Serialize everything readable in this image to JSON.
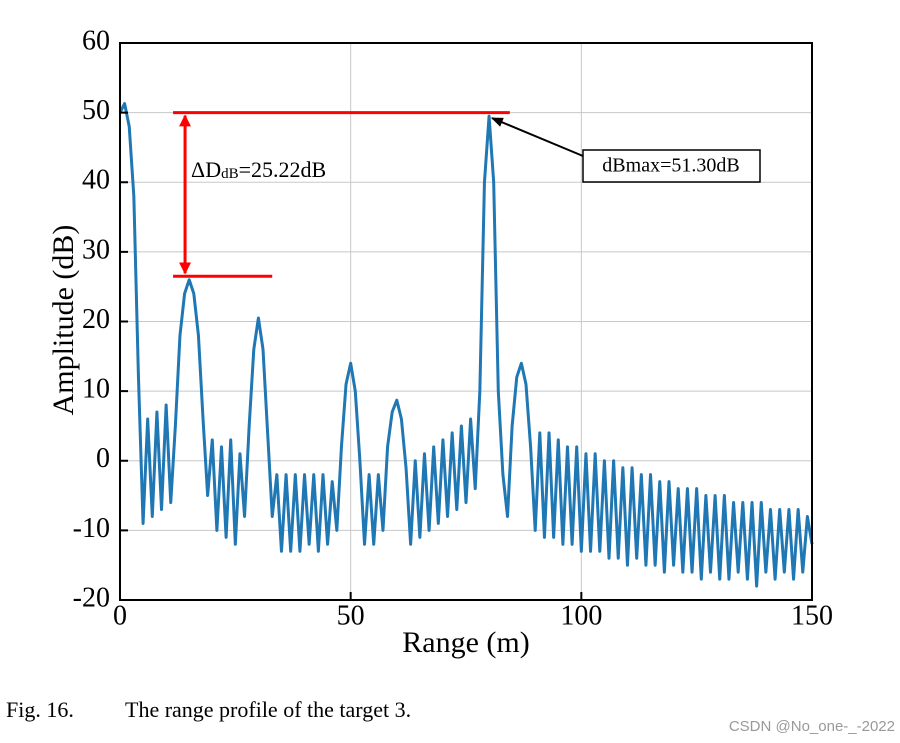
{
  "chart_data": {
    "type": "line",
    "xlabel": "Range (m)",
    "ylabel": "Amplitude (dB)",
    "xlim": [
      0,
      150
    ],
    "xticks": [
      0,
      50,
      100,
      150
    ],
    "ylim": [
      -20,
      60
    ],
    "yticks": [
      -20,
      -10,
      0,
      10,
      20,
      30,
      40,
      50,
      60
    ],
    "grid": true,
    "color": "#1f77b4",
    "x": [
      0,
      1,
      2,
      3,
      4,
      5,
      6,
      7,
      8,
      9,
      10,
      11,
      12,
      13,
      14,
      15,
      16,
      17,
      18,
      19,
      20,
      21,
      22,
      23,
      24,
      25,
      26,
      27,
      28,
      29,
      30,
      31,
      32,
      33,
      34,
      35,
      36,
      37,
      38,
      39,
      40,
      41,
      42,
      43,
      44,
      45,
      46,
      47,
      48,
      49,
      50,
      51,
      52,
      53,
      54,
      55,
      56,
      57,
      58,
      59,
      60,
      61,
      62,
      63,
      64,
      65,
      66,
      67,
      68,
      69,
      70,
      71,
      72,
      73,
      74,
      75,
      76,
      77,
      78,
      79,
      80,
      81,
      82,
      83,
      84,
      85,
      86,
      87,
      88,
      89,
      90,
      91,
      92,
      93,
      94,
      95,
      96,
      97,
      98,
      99,
      100,
      101,
      102,
      103,
      104,
      105,
      106,
      107,
      108,
      109,
      110,
      111,
      112,
      113,
      114,
      115,
      116,
      117,
      118,
      119,
      120,
      121,
      122,
      123,
      124,
      125,
      126,
      127,
      128,
      129,
      130,
      131,
      132,
      133,
      134,
      135,
      136,
      137,
      138,
      139,
      140,
      141,
      142,
      143,
      144,
      145,
      146,
      147,
      148,
      149,
      150
    ],
    "values": [
      50,
      51.3,
      48,
      38,
      12,
      -9,
      6,
      -8,
      7,
      -7,
      8,
      -6,
      5,
      18,
      24,
      26,
      24,
      18,
      6,
      -5,
      3,
      -10,
      2,
      -11,
      3,
      -12,
      1,
      -8,
      5,
      16,
      20.5,
      16,
      4,
      -8,
      -2,
      -13,
      -2,
      -13,
      -2,
      -13,
      -2,
      -12,
      -2,
      -13,
      -2,
      -12,
      -3,
      -10,
      2,
      11,
      14,
      10,
      0,
      -12,
      -2,
      -12,
      -2,
      -10,
      2,
      7,
      8.7,
      6,
      -1,
      -12,
      0,
      -11,
      1,
      -10,
      2,
      -9,
      3,
      -8,
      4,
      -7,
      5,
      -6,
      6,
      -4,
      10,
      40,
      49.5,
      40,
      10,
      -2,
      -8,
      5,
      12,
      14,
      11,
      2,
      -10,
      4,
      -11,
      4,
      -11,
      3,
      -12,
      2,
      -12,
      2,
      -13,
      1,
      -13,
      1,
      -13,
      0,
      -14,
      0,
      -14,
      -1,
      -15,
      -1,
      -14,
      -2,
      -15,
      -2,
      -15,
      -3,
      -16,
      -3,
      -15,
      -4,
      -16,
      -4,
      -16,
      -4,
      -17,
      -5,
      -16,
      -5,
      -17,
      -5,
      -17,
      -6,
      -16,
      -6,
      -17,
      -6,
      -18,
      -6,
      -16,
      -7,
      -17,
      -7,
      -16,
      -7,
      -17,
      -7,
      -16,
      -8,
      -12
    ],
    "annotations": {
      "color": "#ff0000",
      "upper_level": 50,
      "lower_level": 26.5,
      "x_start": 11.5,
      "upper_x_end": 84.5,
      "lower_x_end": 33,
      "delta_main": "ΔD",
      "delta_sub": "dB",
      "delta_rest": "=25.22dB",
      "max_label": "dBmax=51.30dB"
    }
  },
  "caption": {
    "label": "Fig. 16.",
    "text": "The range profile of the target 3."
  },
  "watermark": "CSDN @No_one-_-2022"
}
